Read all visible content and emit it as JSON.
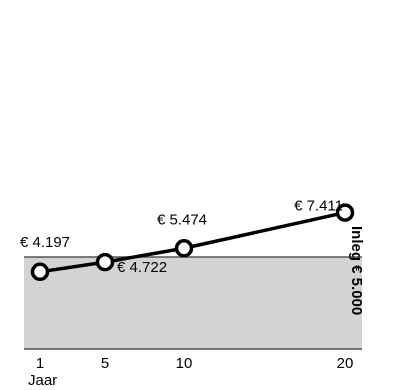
{
  "chart_data": {
    "type": "line",
    "x": [
      1,
      5,
      10,
      20
    ],
    "x_ticks": [
      "1",
      "5",
      "10",
      "20"
    ],
    "xlabel": "Jaar",
    "ylabel": "",
    "title": "",
    "series": [
      {
        "values": [
          4197,
          4722,
          5474,
          7411
        ],
        "labels": [
          "€ 4.197",
          "€ 4.722",
          "€ 5.474",
          "€ 7.411"
        ]
      }
    ],
    "baseline": {
      "value": 5000,
      "label": "Inleg € 5.000"
    },
    "grid": false,
    "legend": "none"
  },
  "colors": {
    "line": "#000000",
    "marker_fill": "#ffffff",
    "deposit_area": "#d3d3d3",
    "baseline": "#555555"
  }
}
